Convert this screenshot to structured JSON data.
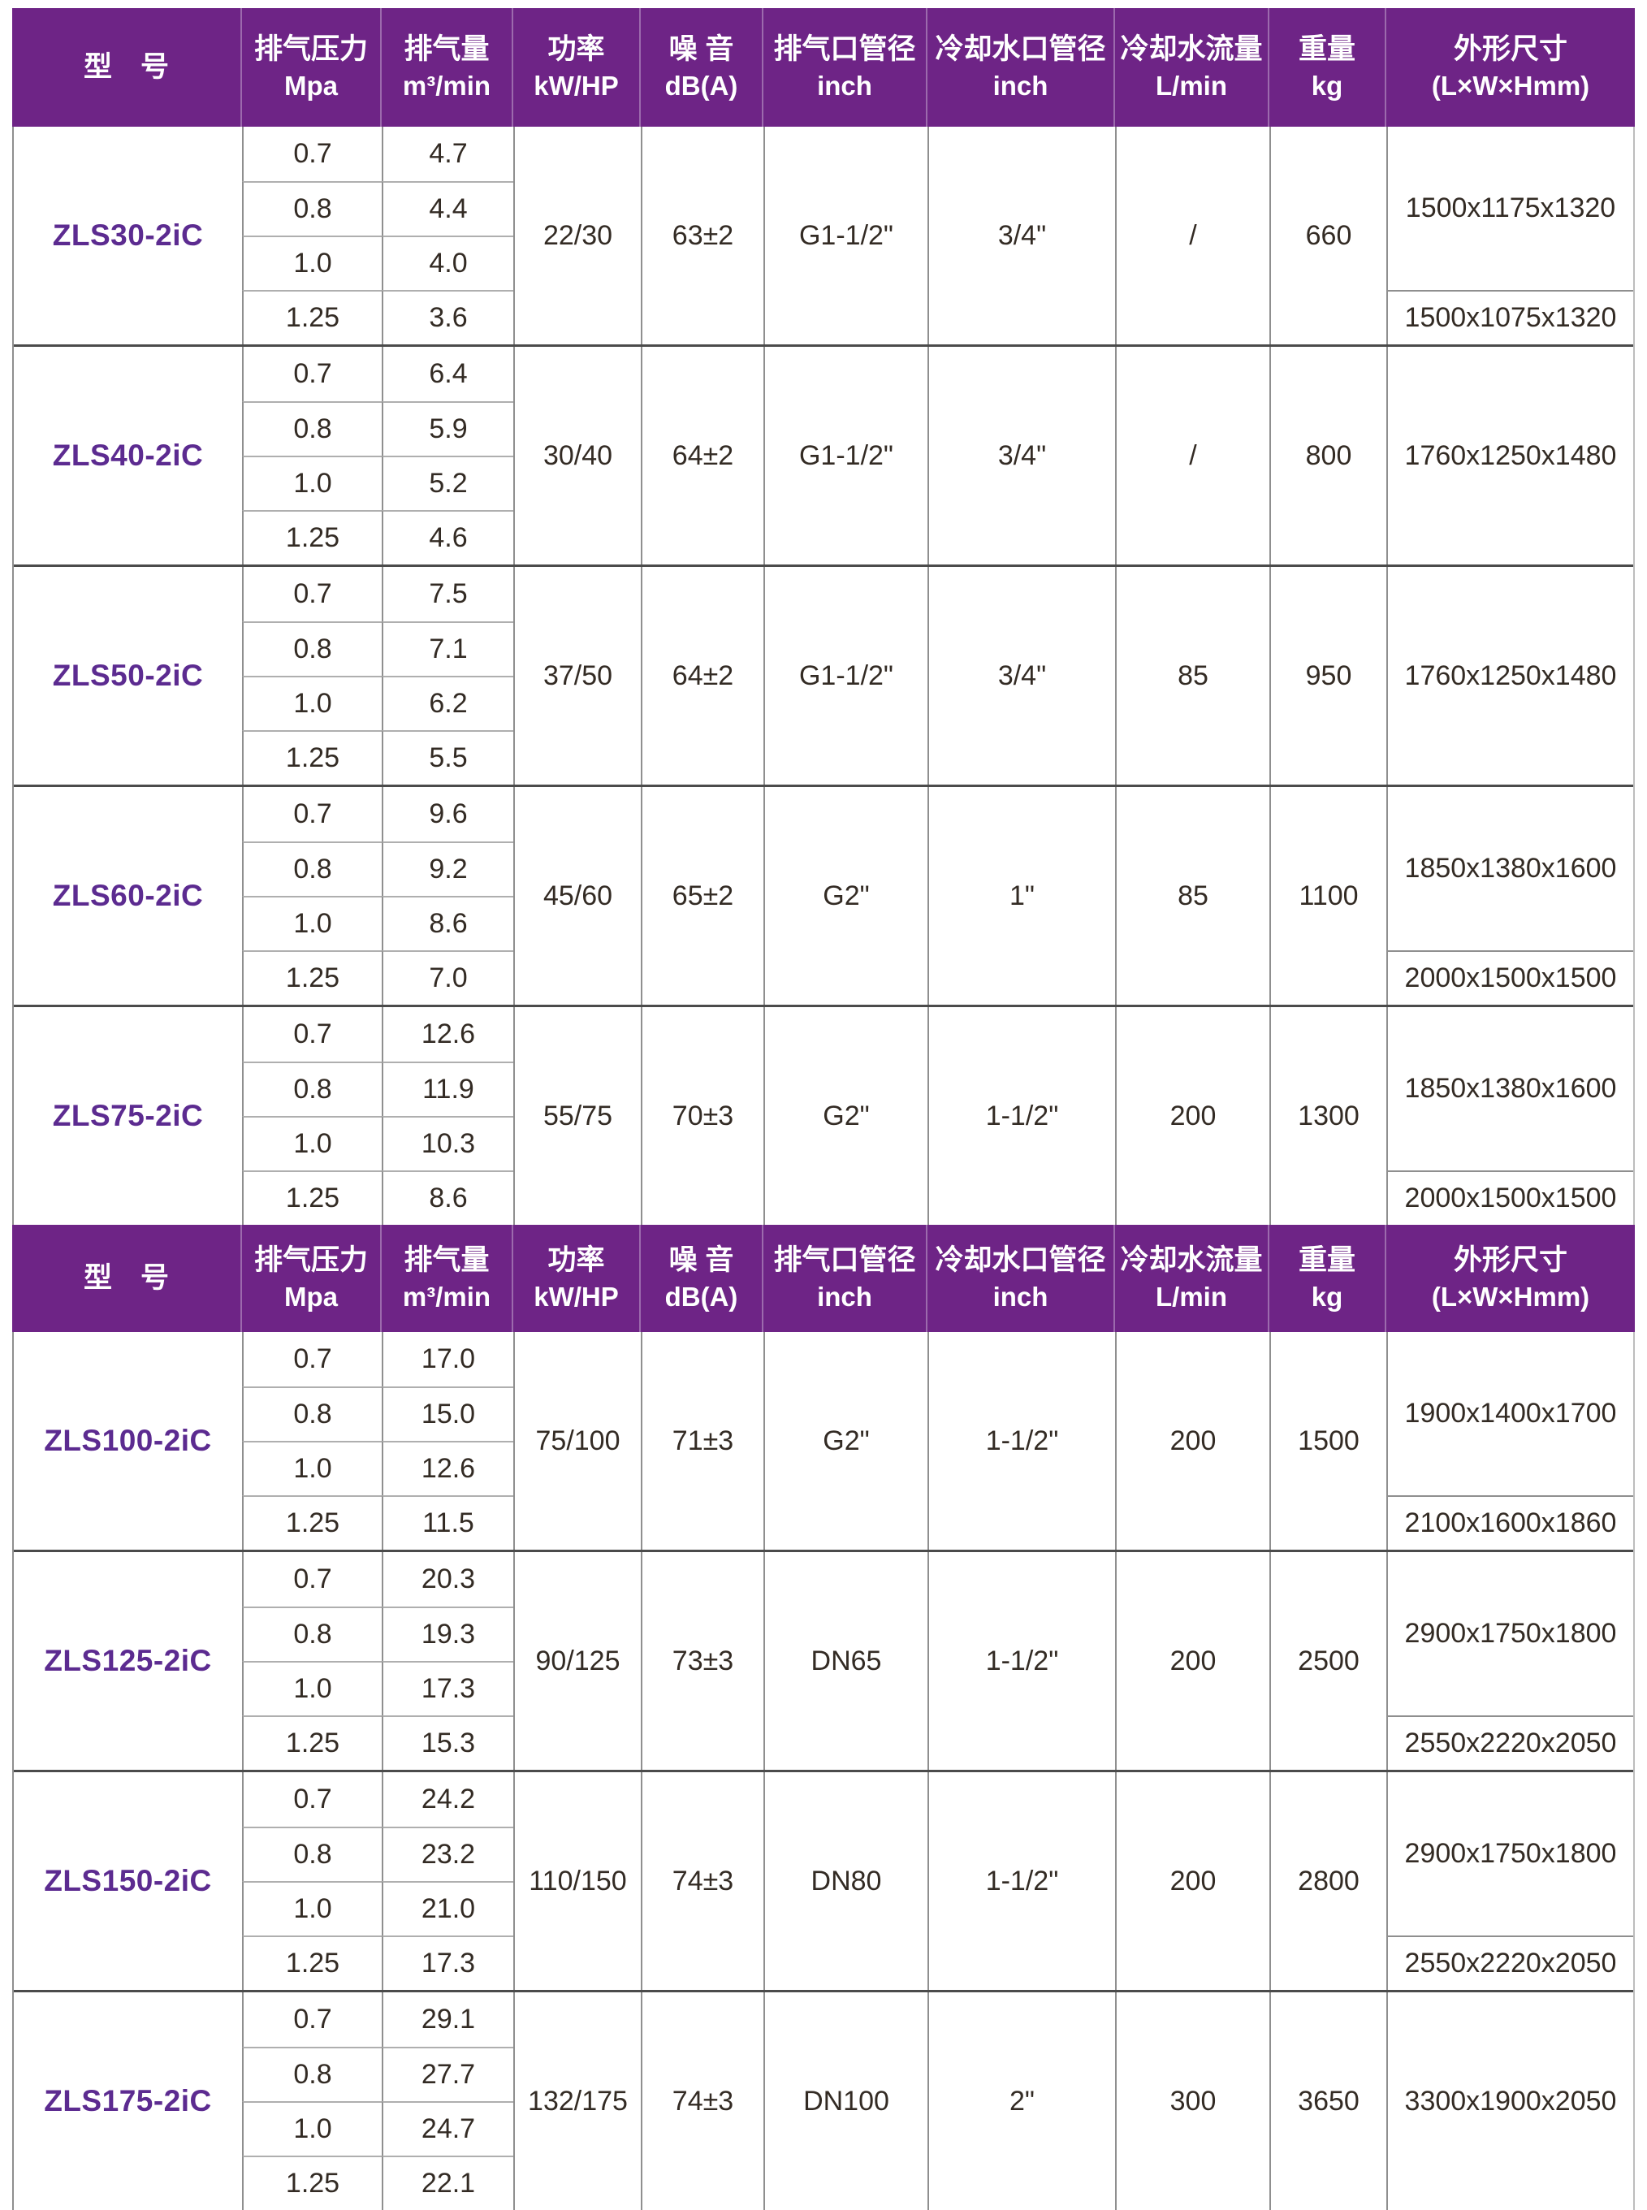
{
  "colors": {
    "header_bg": "#6E2486",
    "header_text": "#FFFFFF",
    "model_text": "#5C2B90",
    "body_text": "#332B24",
    "block_divider": "#4B4B4B",
    "grid_line": "#8F8F8F",
    "subrow_line": "#AFAFAF"
  },
  "header": {
    "columns": [
      {
        "title": "型　号",
        "unit": ""
      },
      {
        "title": "排气压力",
        "unit": "Mpa"
      },
      {
        "title": "排气量",
        "unit": "m³/min"
      },
      {
        "title": "功率",
        "unit": "kW/HP"
      },
      {
        "title": "噪 音",
        "unit": "dB(A)"
      },
      {
        "title": "排气口管径",
        "unit": "inch"
      },
      {
        "title": "冷却水口管径",
        "unit": "inch"
      },
      {
        "title": "冷却水流量",
        "unit": "L/min"
      },
      {
        "title": "重量",
        "unit": "kg"
      },
      {
        "title": "外形尺寸",
        "unit": "(L×W×Hmm)"
      }
    ]
  },
  "models": [
    {
      "model": "ZLS30-2iC",
      "pressures": [
        "0.7",
        "0.8",
        "1.0",
        "1.25"
      ],
      "flows": [
        "4.7",
        "4.4",
        "4.0",
        "3.6"
      ],
      "power": "22/30",
      "noise": "63±2",
      "outlet": "G1-1/2\"",
      "cooling_port": "3/4\"",
      "cooling_flow": "/",
      "weight": "660",
      "dims": [
        "1500x1175x1320",
        "1500x1075x1320"
      ]
    },
    {
      "model": "ZLS40-2iC",
      "pressures": [
        "0.7",
        "0.8",
        "1.0",
        "1.25"
      ],
      "flows": [
        "6.4",
        "5.9",
        "5.2",
        "4.6"
      ],
      "power": "30/40",
      "noise": "64±2",
      "outlet": "G1-1/2\"",
      "cooling_port": "3/4\"",
      "cooling_flow": "/",
      "weight": "800",
      "dims": [
        "1760x1250x1480"
      ]
    },
    {
      "model": "ZLS50-2iC",
      "pressures": [
        "0.7",
        "0.8",
        "1.0",
        "1.25"
      ],
      "flows": [
        "7.5",
        "7.1",
        "6.2",
        "5.5"
      ],
      "power": "37/50",
      "noise": "64±2",
      "outlet": "G1-1/2\"",
      "cooling_port": "3/4\"",
      "cooling_flow": "85",
      "weight": "950",
      "dims": [
        "1760x1250x1480"
      ]
    },
    {
      "model": "ZLS60-2iC",
      "pressures": [
        "0.7",
        "0.8",
        "1.0",
        "1.25"
      ],
      "flows": [
        "9.6",
        "9.2",
        "8.6",
        "7.0"
      ],
      "power": "45/60",
      "noise": "65±2",
      "outlet": "G2\"",
      "cooling_port": "1\"",
      "cooling_flow": "85",
      "weight": "1100",
      "dims": [
        "1850x1380x1600",
        "2000x1500x1500"
      ]
    },
    {
      "model": "ZLS75-2iC",
      "pressures": [
        "0.7",
        "0.8",
        "1.0",
        "1.25"
      ],
      "flows": [
        "12.6",
        "11.9",
        "10.3",
        "8.6"
      ],
      "power": "55/75",
      "noise": "70±3",
      "outlet": "G2\"",
      "cooling_port": "1-1/2\"",
      "cooling_flow": "200",
      "weight": "1300",
      "dims": [
        "1850x1380x1600",
        "2000x1500x1500"
      ]
    },
    {
      "model": "ZLS100-2iC",
      "pressures": [
        "0.7",
        "0.8",
        "1.0",
        "1.25"
      ],
      "flows": [
        "17.0",
        "15.0",
        "12.6",
        "11.5"
      ],
      "power": "75/100",
      "noise": "71±3",
      "outlet": "G2\"",
      "cooling_port": "1-1/2\"",
      "cooling_flow": "200",
      "weight": "1500",
      "dims": [
        "1900x1400x1700",
        "2100x1600x1860"
      ]
    },
    {
      "model": "ZLS125-2iC",
      "pressures": [
        "0.7",
        "0.8",
        "1.0",
        "1.25"
      ],
      "flows": [
        "20.3",
        "19.3",
        "17.3",
        "15.3"
      ],
      "power": "90/125",
      "noise": "73±3",
      "outlet": "DN65",
      "cooling_port": "1-1/2\"",
      "cooling_flow": "200",
      "weight": "2500",
      "dims": [
        "2900x1750x1800",
        "2550x2220x2050"
      ]
    },
    {
      "model": "ZLS150-2iC",
      "pressures": [
        "0.7",
        "0.8",
        "1.0",
        "1.25"
      ],
      "flows": [
        "24.2",
        "23.2",
        "21.0",
        "17.3"
      ],
      "power": "110/150",
      "noise": "74±3",
      "outlet": "DN80",
      "cooling_port": "1-1/2\"",
      "cooling_flow": "200",
      "weight": "2800",
      "dims": [
        "2900x1750x1800",
        "2550x2220x2050"
      ]
    },
    {
      "model": "ZLS175-2iC",
      "pressures": [
        "0.7",
        "0.8",
        "1.0",
        "1.25"
      ],
      "flows": [
        "29.1",
        "27.7",
        "24.7",
        "22.1"
      ],
      "power": "132/175",
      "noise": "74±3",
      "outlet": "DN100",
      "cooling_port": "2\"",
      "cooling_flow": "300",
      "weight": "3650",
      "dims": [
        "3300x1900x2050"
      ]
    }
  ]
}
